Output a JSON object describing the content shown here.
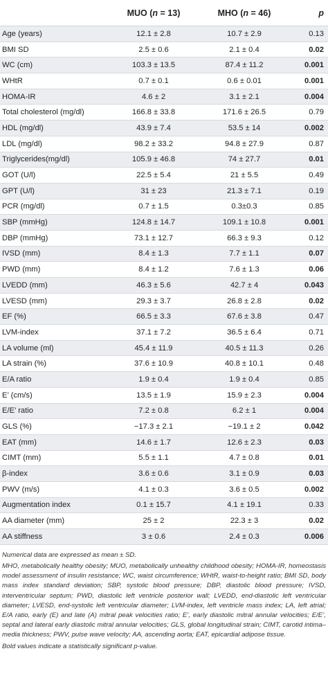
{
  "header": {
    "col_label": "",
    "col_muo": "MUO (n = 13)",
    "col_mho": "MHO (n = 46)",
    "col_p": "p"
  },
  "rows": [
    {
      "label": "Age (years)",
      "muo": "12.1 ± 2.8",
      "mho": "10.7 ± 2.9",
      "p": "0.13",
      "sig": false
    },
    {
      "label": "BMI SD",
      "muo": "2.5 ± 0.6",
      "mho": "2.1 ± 0.4",
      "p": "0.02",
      "sig": true
    },
    {
      "label": "WC (cm)",
      "muo": "103.3 ± 13.5",
      "mho": "87.4 ± 11.2",
      "p": "0.001",
      "sig": true
    },
    {
      "label": "WHtR",
      "muo": "0.7 ± 0.1",
      "mho": "0.6 ± 0.01",
      "p": "0.001",
      "sig": true
    },
    {
      "label": "HOMA-IR",
      "muo": "4.6 ± 2",
      "mho": "3.1 ± 2.1",
      "p": "0.004",
      "sig": true
    },
    {
      "label": "Total cholesterol (mg/dl)",
      "muo": "166.8 ± 33.8",
      "mho": "171.6 ± 26.5",
      "p": "0.79",
      "sig": false
    },
    {
      "label": "HDL (mg/dl)",
      "muo": "43.9 ± 7.4",
      "mho": "53.5 ± 14",
      "p": "0.002",
      "sig": true
    },
    {
      "label": "LDL (mg/dl)",
      "muo": "98.2 ± 33.2",
      "mho": "94.8 ± 27.9",
      "p": "0.87",
      "sig": false
    },
    {
      "label": "Triglycerides(mg/dl)",
      "muo": "105.9 ± 46.8",
      "mho": "74 ± 27.7",
      "p": "0.01",
      "sig": true
    },
    {
      "label": "GOT (U/l)",
      "muo": "22.5 ± 5.4",
      "mho": "21 ± 5.5",
      "p": "0.49",
      "sig": false
    },
    {
      "label": "GPT (U/l)",
      "muo": "31 ± 23",
      "mho": "21.3 ± 7.1",
      "p": "0.19",
      "sig": false
    },
    {
      "label": "PCR (mg/dl)",
      "muo": "0.7 ± 1.5",
      "mho": "0.3±0.3",
      "p": "0.85",
      "sig": false
    },
    {
      "label": "SBP (mmHg)",
      "muo": "124.8 ± 14.7",
      "mho": "109.1 ± 10.8",
      "p": "0.001",
      "sig": true
    },
    {
      "label": "DBP (mmHg)",
      "muo": "73.1 ± 12.7",
      "mho": "66.3 ± 9.3",
      "p": "0.12",
      "sig": false
    },
    {
      "label": "IVSD (mm)",
      "muo": "8.4 ± 1.3",
      "mho": "7.7 ± 1.1",
      "p": "0.07",
      "sig": true
    },
    {
      "label": "PWD (mm)",
      "muo": "8.4 ± 1.2",
      "mho": "7.6 ± 1.3",
      "p": "0.06",
      "sig": true
    },
    {
      "label": "LVEDD (mm)",
      "muo": "46.3 ± 5.6",
      "mho": "42.7 ± 4",
      "p": "0.043",
      "sig": true
    },
    {
      "label": "LVESD (mm)",
      "muo": "29.3 ± 3.7",
      "mho": "26.8 ± 2.8",
      "p": "0.02",
      "sig": true
    },
    {
      "label": "EF (%)",
      "muo": "66.5 ± 3.3",
      "mho": "67.6 ± 3.8",
      "p": "0.47",
      "sig": false
    },
    {
      "label": "LVM-index",
      "muo": "37.1 ± 7.2",
      "mho": "36.5 ± 6.4",
      "p": "0.71",
      "sig": false
    },
    {
      "label": "LA volume (ml)",
      "muo": "45.4 ± 11.9",
      "mho": "40.5 ± 11.3",
      "p": "0.26",
      "sig": false
    },
    {
      "label": "LA strain (%)",
      "muo": "37.6 ± 10.9",
      "mho": "40.8 ± 10.1",
      "p": "0.48",
      "sig": false
    },
    {
      "label": "E/A ratio",
      "muo": "1.9 ± 0.4",
      "mho": "1.9 ± 0.4",
      "p": "0.85",
      "sig": false
    },
    {
      "label": "E’ (cm/s)",
      "muo": "13.5 ± 1.9",
      "mho": "15.9 ± 2.3",
      "p": "0.004",
      "sig": true
    },
    {
      "label": "E/E’ ratio",
      "muo": "7.2 ± 0.8",
      "mho": "6.2 ± 1",
      "p": "0.004",
      "sig": true
    },
    {
      "label": "GLS (%)",
      "muo": "−17.3 ± 2.1",
      "mho": "−19.1 ± 2",
      "p": "0.042",
      "sig": true
    },
    {
      "label": "EAT (mm)",
      "muo": "14.6 ± 1.7",
      "mho": "12.6 ± 2.3",
      "p": "0.03",
      "sig": true
    },
    {
      "label": "CIMT (mm)",
      "muo": "5.5 ± 1.1",
      "mho": "4.7 ± 0.8",
      "p": "0.01",
      "sig": true
    },
    {
      "label": "β-index",
      "muo": "3.6 ± 0.6",
      "mho": "3.1 ± 0.9",
      "p": "0.03",
      "sig": true
    },
    {
      "label": "PWV (m/s)",
      "muo": "4.1 ± 0.3",
      "mho": "3.6 ± 0.5",
      "p": "0.002",
      "sig": true
    },
    {
      "label": "Augmentation index",
      "muo": "0.1 ± 15.7",
      "mho": "4.1 ± 19.1",
      "p": "0.33",
      "sig": false
    },
    {
      "label": "AA diameter (mm)",
      "muo": "25 ± 2",
      "mho": "22.3 ± 3",
      "p": "0.02",
      "sig": true
    },
    {
      "label": "AA stiffness",
      "muo": "3 ± 0.6",
      "mho": "2.4 ± 0.3",
      "p": "0.006",
      "sig": true
    }
  ],
  "notes": {
    "n1": "Numerical data are expressed as mean ± SD.",
    "n2": "MHO, metabolically healthy obesity; MUO, metabolically unhealthy childhood obesity; HOMA-IR, homeostasis model assessment of insulin resistance; WC, waist circumference; WHtR, waist-to-height ratio; BMI SD, body mass index standard deviation; SBP, systolic blood pressure; DBP, diastolic blood pressure; IVSD, interventricular septum; PWD, diastolic left ventricle posterior wall; LVEDD, end-diastolic left ventricular diameter; LVESD, end-systolic left ventricular diameter; LVM-index, left ventricle mass index; LA, left atrial; E/A ratio, early (E) and late (A) mitral peak velocities ratio; E’, early diastolic mitral annular velocities; E/E’, septal and lateral early diastolic mitral annular velocities; GLS, global longitudinal strain; CIMT, carotid intima–media thickness; PWV, pulse wave velocity; AA, ascending aorta; EAT, epicardial adipose tissue.",
    "n3": "Bold values indicate a statistically significant p-value."
  }
}
